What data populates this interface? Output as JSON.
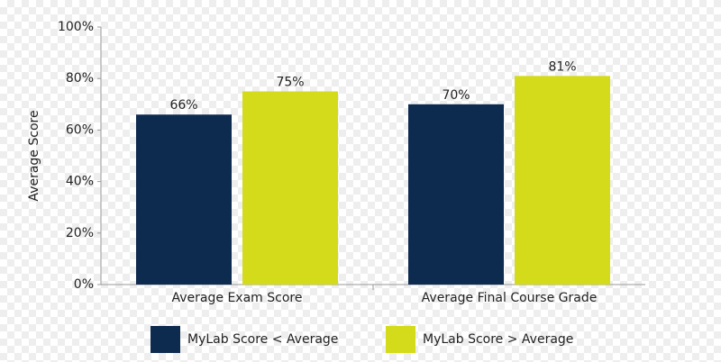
{
  "chart_data": {
    "type": "bar",
    "y_label": "Average Score",
    "categories": [
      "Average Exam Score",
      "Average Final Course Grade"
    ],
    "series": [
      {
        "name": "MyLab Score < Average",
        "color": "#0d2a4f",
        "values": [
          66,
          70
        ],
        "value_labels": [
          "66%",
          "70%"
        ]
      },
      {
        "name": "MyLab Score > Average",
        "color": "#d3db1a",
        "values": [
          75,
          81
        ],
        "value_labels": [
          "75%",
          "81%"
        ]
      }
    ],
    "ylim": [
      0,
      100
    ],
    "yticks": [
      {
        "value": 0,
        "label": "0%"
      },
      {
        "value": 20,
        "label": "20%"
      },
      {
        "value": 40,
        "label": "40%"
      },
      {
        "value": 60,
        "label": "60%"
      },
      {
        "value": 80,
        "label": "80%"
      },
      {
        "value": 100,
        "label": "100%"
      }
    ],
    "legend": "bottom"
  }
}
